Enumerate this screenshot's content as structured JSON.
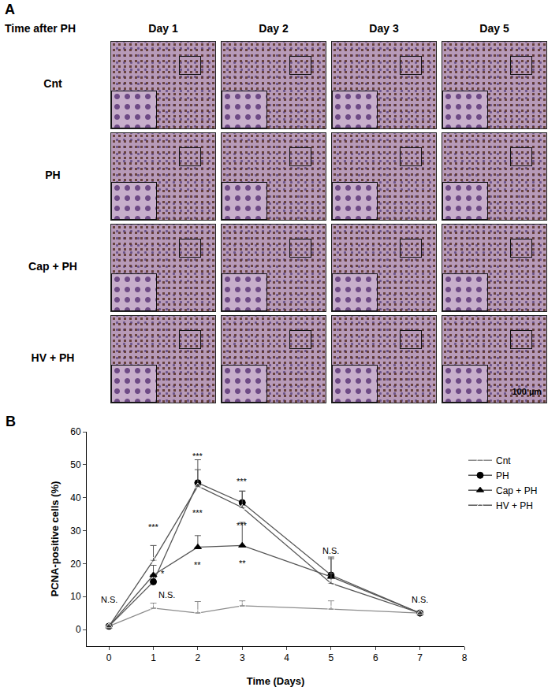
{
  "panel_a": {
    "label": "A",
    "header": "Time after PH",
    "columns": [
      "Day 1",
      "Day 2",
      "Day 3",
      "Day 5"
    ],
    "rows": [
      "Cnt",
      "PH",
      "Cap + PH",
      "HV + PH"
    ],
    "scale_bar": "100 µm"
  },
  "chart_data": {
    "type": "line",
    "title": "B",
    "x": [
      0,
      1,
      2,
      3,
      5,
      7
    ],
    "x_label": "Time (Days)",
    "y_label": "PCNA-positive cells (%)",
    "xlim": [
      -0.5,
      8
    ],
    "xticks": [
      0,
      1,
      2,
      3,
      4,
      5,
      6,
      7,
      8
    ],
    "ylim": [
      -5,
      60
    ],
    "yticks": [
      0,
      10,
      20,
      30,
      40,
      50,
      60
    ],
    "grid": false,
    "legend": "upper right",
    "series": [
      {
        "name": "Cnt",
        "color": "#8c8c8c",
        "marker": "circle-open",
        "values": [
          1,
          6.5,
          5,
          7.2,
          6.2,
          5
        ],
        "error": [
          0.5,
          1.5,
          3.5,
          1.5,
          2.5,
          0.5
        ]
      },
      {
        "name": "PH",
        "color": "#555555",
        "marker": "circle",
        "values": [
          1,
          14.5,
          44.5,
          38.5,
          16.5,
          5
        ],
        "error": [
          0.5,
          2,
          4,
          3.5,
          5,
          0.5
        ]
      },
      {
        "name": "Cap + PH",
        "color": "#555555",
        "marker": "triangle-up",
        "values": [
          1,
          16.5,
          25,
          25.5,
          16,
          5
        ],
        "error": [
          0.5,
          3,
          3.5,
          7,
          6,
          0.5
        ]
      },
      {
        "name": "HV + PH",
        "color": "#555555",
        "marker": "triangle-up-open",
        "values": [
          1,
          21,
          43.5,
          37,
          14,
          5
        ],
        "error": [
          0.5,
          4.5,
          8,
          5,
          3,
          0.5
        ]
      }
    ],
    "annotations": [
      {
        "x": 0,
        "y": 9,
        "text": "N.S."
      },
      {
        "x": 1,
        "y": 31,
        "text": "***"
      },
      {
        "x": 1.22,
        "y": 17,
        "text": "*"
      },
      {
        "x": 1.3,
        "y": 10.5,
        "text": "N.S."
      },
      {
        "x": 2,
        "y": 52.5,
        "text": "***"
      },
      {
        "x": 2,
        "y": 35.5,
        "text": "***"
      },
      {
        "x": 2,
        "y": 19.5,
        "text": "**"
      },
      {
        "x": 3,
        "y": 45,
        "text": "***"
      },
      {
        "x": 3,
        "y": 31.5,
        "text": "***"
      },
      {
        "x": 3,
        "y": 20,
        "text": "**"
      },
      {
        "x": 5,
        "y": 24,
        "text": "N.S."
      },
      {
        "x": 7,
        "y": 9,
        "text": "N.S."
      }
    ]
  }
}
